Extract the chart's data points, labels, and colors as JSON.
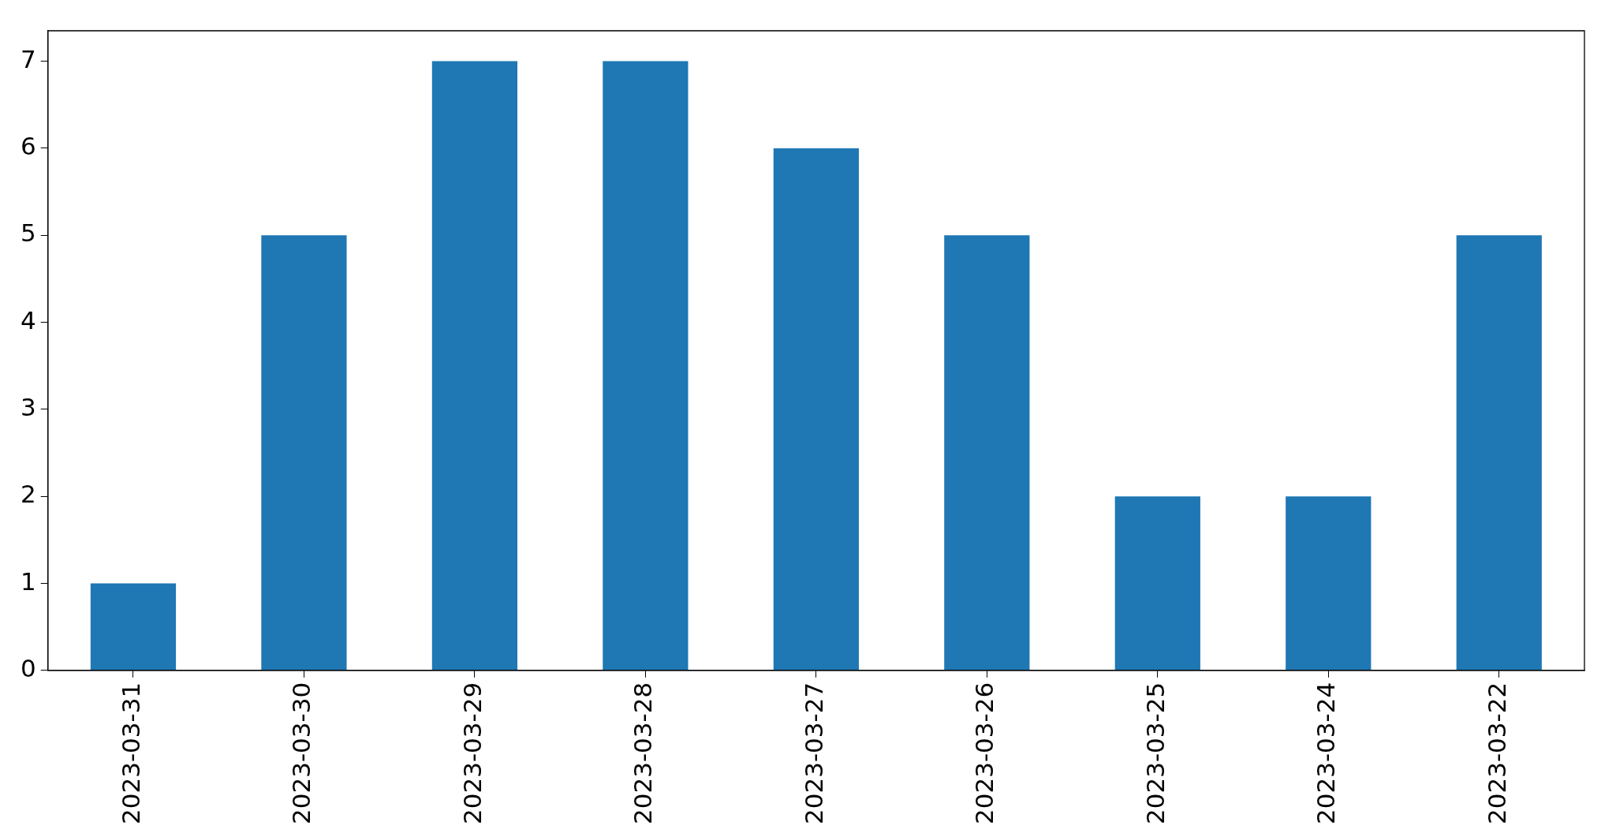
{
  "chart_data": {
    "type": "bar",
    "categories": [
      "2023-03-31",
      "2023-03-30",
      "2023-03-29",
      "2023-03-28",
      "2023-03-27",
      "2023-03-26",
      "2023-03-25",
      "2023-03-24",
      "2023-03-22"
    ],
    "values": [
      1,
      5,
      7,
      7,
      6,
      5,
      2,
      2,
      5
    ],
    "color": "#1f77b4",
    "ylim": [
      0,
      7.35
    ],
    "yticks": [
      0,
      1,
      2,
      3,
      4,
      5,
      6,
      7
    ],
    "grid": false,
    "legend": false
  }
}
